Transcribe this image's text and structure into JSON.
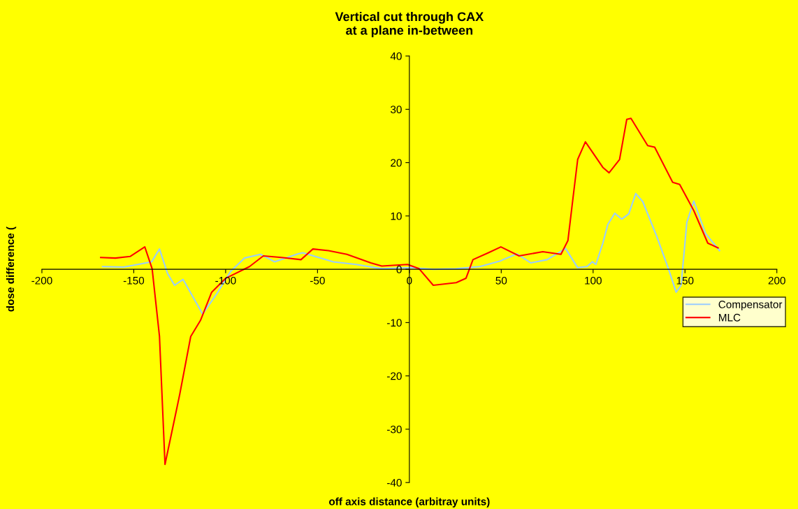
{
  "chart_data": {
    "type": "line",
    "title": "Vertical cut through CAX\nat a plane in-between",
    "xlabel": "off axis distance (arbitray units)",
    "ylabel": "dose difference (",
    "xlim": [
      -200,
      200
    ],
    "xticks": [
      -200,
      -150,
      -100,
      -50,
      0,
      50,
      100,
      150,
      200
    ],
    "ylim": [
      -40,
      40
    ],
    "yticks": [
      -40,
      -30,
      -20,
      -10,
      0,
      10,
      20,
      30,
      40
    ],
    "grid": false,
    "legend": "right",
    "marker": "none",
    "line_style": "solid",
    "series": [
      {
        "name": "Compensator",
        "color": "#99ccff",
        "x": [
          -167,
          -155.5,
          -140.3,
          -136,
          -131.6,
          -127.8,
          -123.2,
          -112.5,
          -105,
          -97.3,
          -89.7,
          -81,
          -73.4,
          -60.5,
          -58,
          -41.4,
          -29,
          -15,
          0.4,
          13,
          25.5,
          38.4,
          49.8,
          51,
          58.6,
          66,
          75,
          85,
          91.6,
          96.6,
          99.6,
          101.5,
          105.3,
          108,
          111.8,
          115.6,
          119.4,
          123.2,
          127,
          134.6,
          141,
          145.2,
          147.9,
          151,
          154.8,
          161.2,
          168.8
        ],
        "values": [
          0.5,
          0.4,
          1.4,
          3.8,
          -0.8,
          -3.0,
          -1.9,
          -8.4,
          -4.7,
          -0.4,
          2.1,
          2.8,
          1.4,
          2.9,
          3.1,
          1.4,
          0.9,
          0.1,
          0.3,
          0,
          0.1,
          0.5,
          1.6,
          1.8,
          2.9,
          1.2,
          1.8,
          3.9,
          0.3,
          0.5,
          1.4,
          0.9,
          4.9,
          8.4,
          10.5,
          9.4,
          10.4,
          14.2,
          12.7,
          6.2,
          0.1,
          -4.3,
          -3.0,
          8.8,
          12.8,
          6.7,
          3.5
        ]
      },
      {
        "name": "MLC",
        "color": "#ff0000",
        "x": [
          -168,
          -160,
          -152,
          -144,
          -140,
          -136,
          -133,
          -125,
          -119,
          -113.7,
          -107.6,
          -100,
          -87,
          -79.5,
          -69.6,
          -59,
          -52.5,
          -44,
          -34,
          -21,
          -15,
          -1,
          5.3,
          13,
          25.5,
          30.8,
          34.6,
          43,
          49.8,
          59.7,
          72.6,
          82.5,
          86.3,
          89,
          91.6,
          95.8,
          105.3,
          108.7,
          114.4,
          118.3,
          120.6,
          129.7,
          133.5,
          143.3,
          147.1,
          154.8,
          162.4,
          168
        ],
        "values": [
          2.2,
          2.1,
          2.4,
          4.2,
          0.1,
          -12.6,
          -36.6,
          -23.5,
          -12.6,
          -9.6,
          -4.3,
          -1.7,
          0.5,
          2.5,
          2.2,
          1.8,
          3.8,
          3.5,
          2.8,
          1.2,
          0.6,
          0.9,
          0.1,
          -3.0,
          -2.5,
          -1.7,
          1.8,
          3.1,
          4.2,
          2.5,
          3.3,
          2.8,
          5.4,
          13.2,
          20.6,
          23.9,
          19.1,
          18.1,
          20.6,
          28.1,
          28.3,
          23.2,
          22.9,
          16.3,
          15.9,
          11.0,
          4.9,
          4.0
        ]
      }
    ]
  }
}
